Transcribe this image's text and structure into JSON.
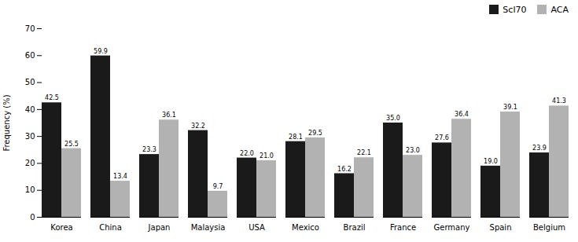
{
  "chart_data": {
    "type": "bar",
    "categories": [
      "Korea",
      "China",
      "Japan",
      "Malaysia",
      "USA",
      "Mexico",
      "Brazil",
      "France",
      "Germany",
      "Spain",
      "Belgium"
    ],
    "series": [
      {
        "name": "Scl70",
        "color": "#1a1a1a",
        "values": [
          42.5,
          59.9,
          23.3,
          32.2,
          22.0,
          28.1,
          16.2,
          35.0,
          27.6,
          19.0,
          23.9
        ],
        "value_labels": [
          "42.5",
          "59.9",
          "23.3",
          "32.2",
          "22.0",
          "28.1",
          "16.2",
          "35.0",
          "27.6",
          "19.0",
          "23.9"
        ]
      },
      {
        "name": "ACA",
        "color": "#b2b2b2",
        "values": [
          25.5,
          13.4,
          36.1,
          9.7,
          21.0,
          29.5,
          22.1,
          23.0,
          36.4,
          39.1,
          41.3
        ],
        "value_labels": [
          "25.5",
          "13.4",
          "36.1",
          "9.7",
          "21.0",
          "29.5",
          "22.1",
          "23.0",
          "36.4",
          "39.1",
          "41.3"
        ]
      }
    ],
    "ylabel": "Frequency (%)",
    "ylim": [
      0,
      70
    ],
    "yticks": [
      0,
      10,
      20,
      30,
      40,
      50,
      60,
      70
    ],
    "legend": "upper right",
    "data_labels": true,
    "grid": false
  }
}
